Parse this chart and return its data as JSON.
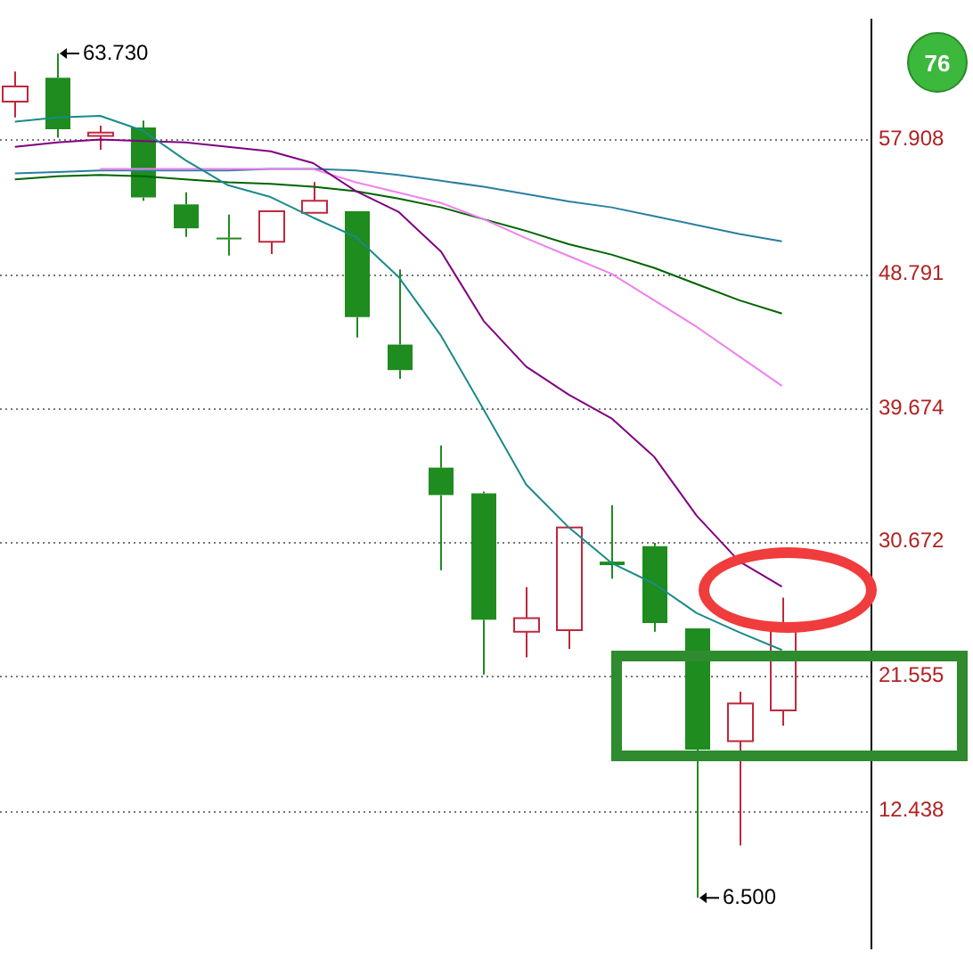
{
  "chart_data": {
    "type": "candlestick",
    "categories": [
      null,
      null,
      null,
      null,
      null,
      null,
      null,
      null,
      null,
      null,
      null,
      null,
      null,
      null,
      null,
      null,
      null,
      null,
      null
    ],
    "ohlc": [
      [
        60.46,
        62.5,
        59.4,
        61.5
      ],
      [
        62.08,
        63.73,
        58.02,
        58.6
      ],
      [
        58.14,
        58.83,
        57.21,
        58.37
      ],
      [
        58.72,
        59.18,
        53.74,
        53.97
      ],
      [
        53.5,
        54.32,
        51.3,
        51.88
      ],
      [
        51.25,
        52.81,
        50.03,
        51.13
      ],
      [
        50.96,
        53.04,
        50.14,
        53.04
      ],
      [
        52.93,
        55.01,
        52.93,
        53.74
      ],
      [
        53.04,
        53.04,
        44.47,
        45.86
      ],
      [
        44.0,
        49.1,
        41.68,
        42.27
      ],
      [
        35.66,
        37.17,
        28.71,
        33.8
      ],
      [
        33.92,
        34.04,
        21.64,
        25.35
      ],
      [
        24.54,
        27.55,
        22.8,
        25.46
      ],
      [
        24.65,
        31.6,
        23.38,
        31.6
      ],
      [
        29.29,
        33.11,
        28.13,
        29.05
      ],
      [
        30.33,
        30.56,
        24.54,
        25.12
      ],
      [
        24.77,
        24.77,
        6.5,
        16.54
      ],
      [
        17.12,
        20.48,
        10.05,
        19.67
      ],
      [
        19.2,
        26.85,
        18.17,
        24.65
      ]
    ],
    "colors": [
      "#c0283c",
      "#1e8c1e",
      "#c0283c",
      "#1e8c1e",
      "#1e8c1e",
      "#1e8c1e",
      "#c0283c",
      "#c0283c",
      "#1e8c1e",
      "#1e8c1e",
      "#1e8c1e",
      "#1e8c1e",
      "#c0283c",
      "#c0283c",
      "#1e8c1e",
      "#1e8c1e",
      "#1e8c1e",
      "#c0283c",
      "#c0283c"
    ],
    "series": [
      {
        "type": "line",
        "color": "#1a8a8a",
        "values": [
          59.1,
          59.4,
          59.5,
          58.5,
          56.5,
          54.8,
          54.0,
          52.6,
          51.3,
          48.6,
          44.6,
          39.6,
          34.5,
          31.6,
          29.2,
          27.8,
          25.8,
          24.5,
          23.3
        ]
      },
      {
        "type": "line",
        "color": "#800080",
        "values": [
          57.4,
          57.7,
          57.9,
          57.8,
          57.7,
          57.4,
          57.1,
          56.3,
          54.4,
          53.0,
          50.3,
          45.6,
          42.5,
          40.6,
          39.0,
          36.4,
          32.4,
          29.3,
          27.6
        ]
      },
      {
        "type": "line",
        "color": "#ee82ee",
        "values": [
          null,
          null,
          55.9,
          55.9,
          55.9,
          55.9,
          55.9,
          55.9,
          55.0,
          54.3,
          53.6,
          52.5,
          51.2,
          50.0,
          48.8,
          47.0,
          45.2,
          43.2,
          41.2
        ]
      },
      {
        "type": "line",
        "color": "#006400",
        "values": [
          55.2,
          55.4,
          55.5,
          55.4,
          55.2,
          55.0,
          54.9,
          54.7,
          54.4,
          53.9,
          53.3,
          52.5,
          51.7,
          50.8,
          50.1,
          49.2,
          48.1,
          47.0,
          46.1
        ]
      },
      {
        "type": "line",
        "color": "#2a7fa0",
        "values": [
          55.6,
          55.7,
          55.8,
          55.8,
          55.8,
          55.8,
          55.9,
          55.9,
          55.8,
          55.5,
          55.1,
          54.7,
          54.2,
          53.7,
          53.3,
          52.7,
          52.1,
          51.5,
          51.0
        ]
      }
    ],
    "ylim": [
      3.1,
      66.0
    ],
    "yticks": [
      {
        "value": 12.438,
        "label": "12.438"
      },
      {
        "value": 21.555,
        "label": "21.555"
      },
      {
        "value": 30.672,
        "label": "30.672"
      },
      {
        "value": 39.674,
        "label": "39.674"
      },
      {
        "value": 48.791,
        "label": "48.791"
      },
      {
        "value": 57.908,
        "label": "57.908"
      }
    ],
    "grid": "y",
    "tick_labels": "y",
    "annotations": [
      "63.730",
      "6.500",
      "76"
    ]
  }
}
